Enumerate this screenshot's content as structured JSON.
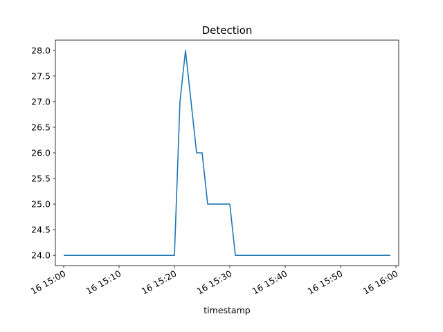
{
  "chart_data": {
    "type": "line",
    "title": "Detection",
    "xlabel": "timestamp",
    "ylabel": "",
    "x_ticks": [
      "16 15:00",
      "16 15:10",
      "16 15:20",
      "16 15:30",
      "16 15:40",
      "16 15:50",
      "16 16:00"
    ],
    "x_tick_minutes": [
      0,
      10,
      20,
      30,
      40,
      50,
      60
    ],
    "y_ticks": [
      "24.0",
      "24.5",
      "25.0",
      "25.5",
      "26.0",
      "26.5",
      "27.0",
      "27.5",
      "28.0"
    ],
    "y_tick_values": [
      24.0,
      24.5,
      25.0,
      25.5,
      26.0,
      26.5,
      27.0,
      27.5,
      28.0
    ],
    "xlim_minutes": [
      -1.5,
      60.5
    ],
    "ylim": [
      23.8,
      28.2
    ],
    "grid": false,
    "series": [
      {
        "name": "",
        "color": "#1f77b4",
        "x": [
          "15:00",
          "15:01",
          "15:02",
          "15:03",
          "15:04",
          "15:05",
          "15:06",
          "15:07",
          "15:08",
          "15:09",
          "15:10",
          "15:11",
          "15:12",
          "15:13",
          "15:14",
          "15:15",
          "15:16",
          "15:17",
          "15:18",
          "15:19",
          "15:20",
          "15:21",
          "15:22",
          "15:23",
          "15:24",
          "15:25",
          "15:26",
          "15:27",
          "15:28",
          "15:29",
          "15:30",
          "15:31",
          "15:32",
          "15:33",
          "15:34",
          "15:35",
          "15:36",
          "15:37",
          "15:38",
          "15:39",
          "15:40",
          "15:41",
          "15:42",
          "15:43",
          "15:44",
          "15:45",
          "15:46",
          "15:47",
          "15:48",
          "15:49",
          "15:50",
          "15:51",
          "15:52",
          "15:53",
          "15:54",
          "15:55",
          "15:56",
          "15:57",
          "15:58",
          "15:59"
        ],
        "y": [
          24,
          24,
          24,
          24,
          24,
          24,
          24,
          24,
          24,
          24,
          24,
          24,
          24,
          24,
          24,
          24,
          24,
          24,
          24,
          24,
          24,
          27,
          28,
          27,
          26,
          26,
          25,
          25,
          25,
          25,
          25,
          24,
          24,
          24,
          24,
          24,
          24,
          24,
          24,
          24,
          24,
          24,
          24,
          24,
          24,
          24,
          24,
          24,
          24,
          24,
          24,
          24,
          24,
          24,
          24,
          24,
          24,
          24,
          24,
          24
        ]
      }
    ]
  }
}
